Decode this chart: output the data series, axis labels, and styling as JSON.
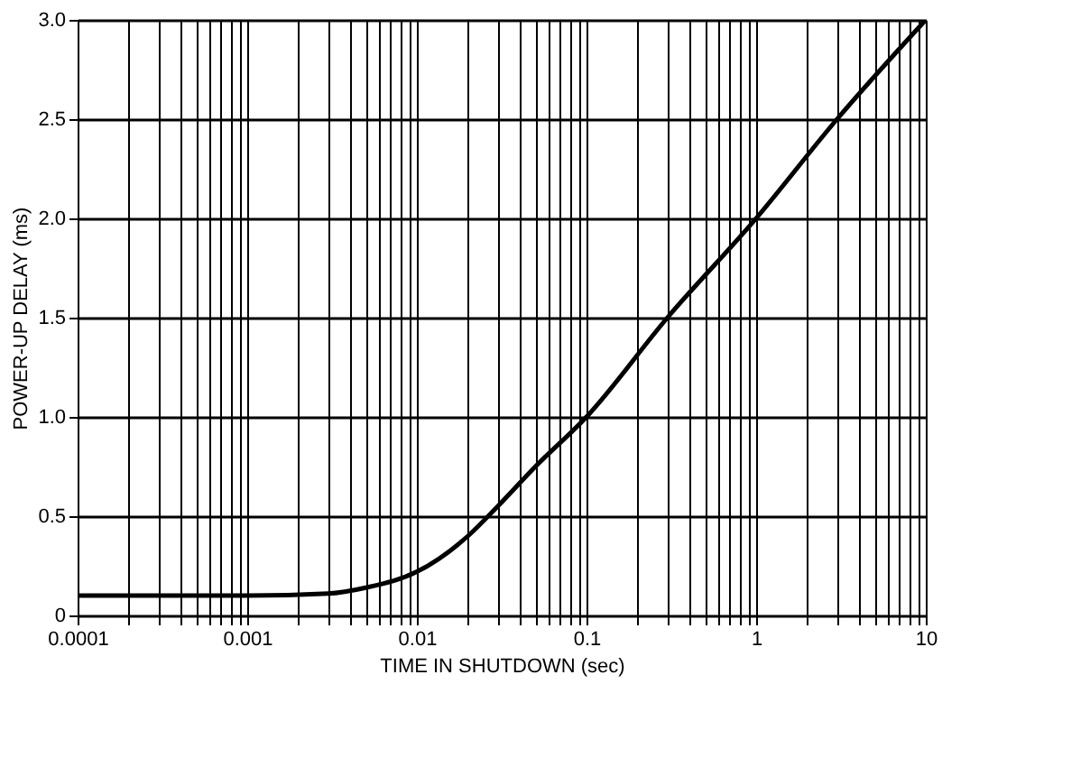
{
  "chart_data": {
    "type": "line",
    "xlabel": "TIME IN SHUTDOWN (sec)",
    "ylabel": "POWER-UP DELAY (ms)",
    "x": [
      0.0001,
      0.001,
      0.003,
      0.005,
      0.01,
      0.02,
      0.03,
      0.05,
      0.1,
      0.3,
      1,
      3,
      10
    ],
    "series": [
      {
        "color": "#000000",
        "values": [
          0.1,
          0.1,
          0.11,
          0.14,
          0.22,
          0.4,
          0.55,
          0.75,
          1.0,
          1.5,
          2.0,
          2.5,
          3.0
        ]
      }
    ],
    "log": "x",
    "xlim": [
      0.0001,
      10
    ],
    "ylim": [
      0,
      3
    ],
    "xticks": [
      0.0001,
      {
        "value": 0.0002,
        "label": null
      },
      {
        "value": 0.0003,
        "label": null
      },
      {
        "value": 0.0004,
        "label": null
      },
      {
        "value": 0.0005,
        "label": null
      },
      {
        "value": 0.0006,
        "label": null
      },
      {
        "value": 0.0007,
        "label": null
      },
      {
        "value": 0.0008,
        "label": null
      },
      {
        "value": 0.0009,
        "label": null
      },
      0.001,
      {
        "value": 0.002,
        "label": null
      },
      {
        "value": 0.003,
        "label": null
      },
      {
        "value": 0.004,
        "label": null
      },
      {
        "value": 0.005,
        "label": null
      },
      {
        "value": 0.006,
        "label": null
      },
      {
        "value": 0.007,
        "label": null
      },
      {
        "value": 0.008,
        "label": null
      },
      {
        "value": 0.009,
        "label": null
      },
      0.01,
      {
        "value": 0.02,
        "label": null
      },
      {
        "value": 0.03,
        "label": null
      },
      {
        "value": 0.04,
        "label": null
      },
      {
        "value": 0.05,
        "label": null
      },
      {
        "value": 0.06,
        "label": null
      },
      {
        "value": 0.07,
        "label": null
      },
      {
        "value": 0.08,
        "label": null
      },
      {
        "value": 0.09,
        "label": null
      },
      0.1,
      {
        "value": 0.2,
        "label": null
      },
      {
        "value": 0.3,
        "label": null
      },
      {
        "value": 0.4,
        "label": null
      },
      {
        "value": 0.5,
        "label": null
      },
      {
        "value": 0.6,
        "label": null
      },
      {
        "value": 0.7,
        "label": null
      },
      {
        "value": 0.8,
        "label": null
      },
      {
        "value": 0.9,
        "label": null
      },
      1,
      {
        "value": 2,
        "label": null
      },
      {
        "value": 3,
        "label": null
      },
      {
        "value": 4,
        "label": null
      },
      {
        "value": 5,
        "label": null
      },
      {
        "value": 6,
        "label": null
      },
      {
        "value": 7,
        "label": null
      },
      {
        "value": 8,
        "label": null
      },
      {
        "value": 9,
        "label": null
      },
      10
    ],
    "yticks": [
      0,
      0.5,
      {
        "value": 1,
        "label": "1.0"
      },
      1.5,
      {
        "value": 2,
        "label": "2.0"
      },
      2.5,
      {
        "value": 3,
        "label": "3.0"
      }
    ],
    "grid": true,
    "marker": "none",
    "line_style": "solid",
    "legend": false
  }
}
